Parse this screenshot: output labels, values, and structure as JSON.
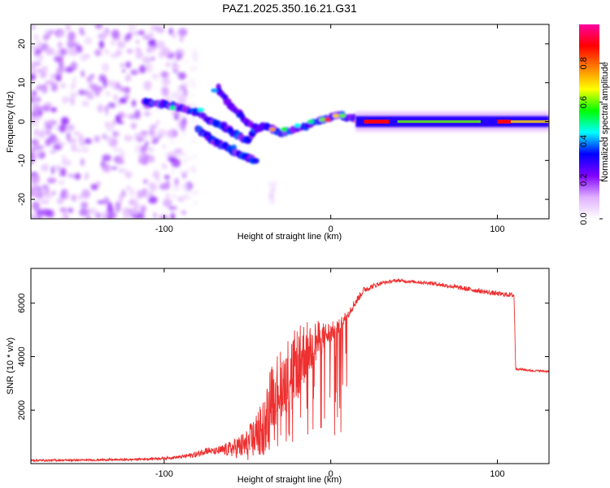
{
  "title": "PAZ1.2025.350.16.21.G31",
  "chart_data": [
    {
      "type": "heatmap",
      "title": "PAZ1.2025.350.16.21.G31",
      "xlabel": "Height of straight line (km)",
      "ylabel": "Frequency (Hz)",
      "xlim": [
        -180,
        131
      ],
      "ylim": [
        -25,
        25
      ],
      "xticks": [
        -100,
        0,
        100
      ],
      "yticks": [
        -20,
        -10,
        0,
        10,
        20
      ],
      "xtick_labels": [
        "-100",
        "0",
        "100"
      ],
      "ytick_labels": [
        "-20",
        "-10",
        "0",
        "10",
        "20"
      ],
      "colorbar": {
        "label": "Normalized spectral amplitude",
        "range": [
          0,
          1
        ],
        "ticks": [
          "0.0",
          "0.2",
          "0.4",
          "0.6",
          "0.8"
        ],
        "colormap": [
          "#ffffff",
          "#e0b0ff",
          "#8000ff",
          "#0000ff",
          "#00ffff",
          "#00ff00",
          "#ffff00",
          "#ff8000",
          "#ff0000",
          "#ff00a0"
        ]
      },
      "features": [
        {
          "name": "main-track",
          "x": [
            18,
            131
          ],
          "freq": 0,
          "amplitude": 0.75
        },
        {
          "name": "upper-branch",
          "x": [
            -110,
            15
          ],
          "freq": [
            5,
            0
          ],
          "amplitude": 0.35
        },
        {
          "name": "lower-branch",
          "x": [
            -75,
            -45
          ],
          "freq": [
            -2,
            -10
          ],
          "amplitude": 0.3
        },
        {
          "name": "noise-region",
          "x": [
            -180,
            -90
          ],
          "freq": [
            -25,
            25
          ],
          "amplitude": 0.15
        }
      ]
    },
    {
      "type": "line",
      "xlabel": "Height of straight line (km)",
      "ylabel": "SNR (10 * v/v)",
      "xlim": [
        -180,
        131
      ],
      "ylim": [
        0,
        7300
      ],
      "xticks": [
        -100,
        0,
        100
      ],
      "yticks": [
        2000,
        4000,
        6000
      ],
      "xtick_labels": [
        "-100",
        "0",
        "100"
      ],
      "ytick_labels": [
        "2000",
        "4000",
        "6000"
      ],
      "color": "#ee3030",
      "series": [
        {
          "name": "SNR",
          "x": [
            -180,
            -150,
            -120,
            -100,
            -90,
            -80,
            -75,
            -70,
            -60,
            -50,
            -40,
            -35,
            -30,
            -25,
            -20,
            -15,
            -10,
            -5,
            0,
            5,
            10,
            20,
            30,
            40,
            50,
            60,
            70,
            80,
            90,
            100,
            110,
            111,
            120,
            131
          ],
          "values": [
            120,
            130,
            150,
            200,
            250,
            350,
            500,
            450,
            550,
            700,
            1400,
            2600,
            3000,
            3500,
            3800,
            4200,
            4500,
            4700,
            4900,
            5100,
            5600,
            6500,
            6750,
            6850,
            6800,
            6750,
            6650,
            6550,
            6450,
            6350,
            6300,
            3550,
            3480,
            3450
          ],
          "noise": [
            40,
            40,
            40,
            50,
            60,
            120,
            150,
            120,
            300,
            600,
            1100,
            1300,
            1300,
            1300,
            1300,
            1200,
            900,
            600,
            400,
            300,
            200,
            120,
            70,
            60,
            60,
            70,
            80,
            90,
            90,
            90,
            90,
            40,
            40,
            40
          ]
        }
      ]
    }
  ]
}
